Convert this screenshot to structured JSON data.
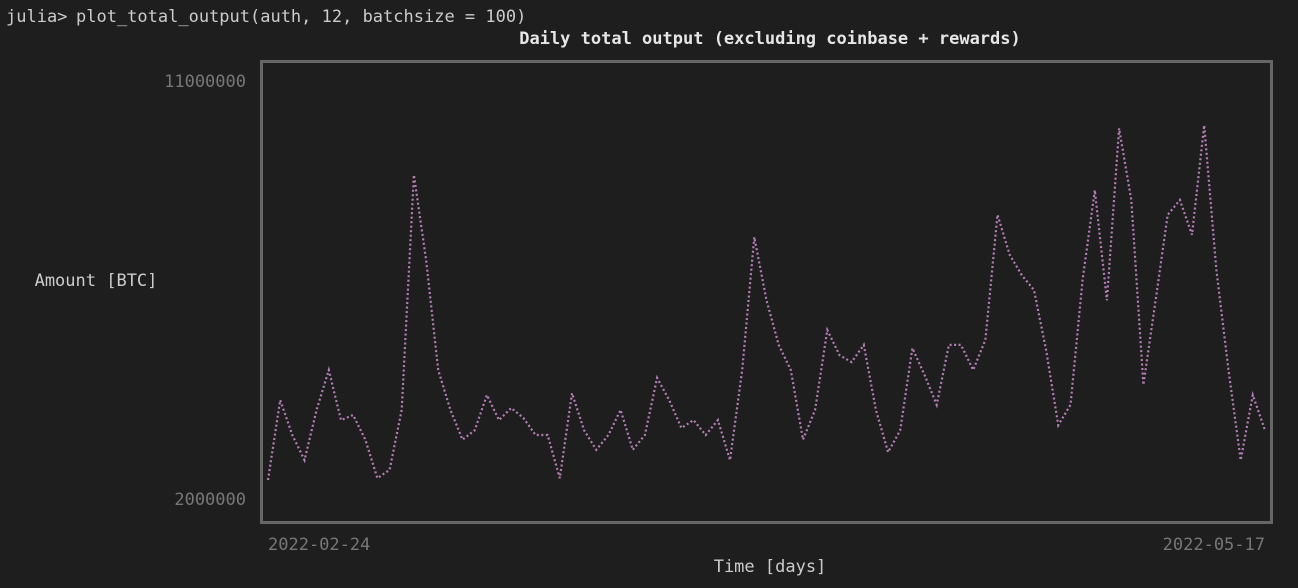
{
  "terminal": {
    "prompt": "julia>",
    "command": "plot_total_output(auth, 12, batchsize = 100)"
  },
  "chart_data": {
    "type": "line",
    "title": "Daily total output (excluding coinbase + rewards)",
    "xlabel": "Time [days]",
    "ylabel": "Amount [BTC]",
    "x": [
      "2022-02-24",
      "2022-02-25",
      "2022-02-26",
      "2022-02-27",
      "2022-02-28",
      "2022-03-01",
      "2022-03-02",
      "2022-03-03",
      "2022-03-04",
      "2022-03-05",
      "2022-03-06",
      "2022-03-07",
      "2022-03-08",
      "2022-03-09",
      "2022-03-10",
      "2022-03-11",
      "2022-03-12",
      "2022-03-13",
      "2022-03-14",
      "2022-03-15",
      "2022-03-16",
      "2022-03-17",
      "2022-03-18",
      "2022-03-19",
      "2022-03-20",
      "2022-03-21",
      "2022-03-22",
      "2022-03-23",
      "2022-03-24",
      "2022-03-25",
      "2022-03-26",
      "2022-03-27",
      "2022-03-28",
      "2022-03-29",
      "2022-03-30",
      "2022-03-31",
      "2022-04-01",
      "2022-04-02",
      "2022-04-03",
      "2022-04-04",
      "2022-04-05",
      "2022-04-06",
      "2022-04-07",
      "2022-04-08",
      "2022-04-09",
      "2022-04-10",
      "2022-04-11",
      "2022-04-12",
      "2022-04-13",
      "2022-04-14",
      "2022-04-15",
      "2022-04-16",
      "2022-04-17",
      "2022-04-18",
      "2022-04-19",
      "2022-04-20",
      "2022-04-21",
      "2022-04-22",
      "2022-04-23",
      "2022-04-24",
      "2022-04-25",
      "2022-04-26",
      "2022-04-27",
      "2022-04-28",
      "2022-04-29",
      "2022-04-30",
      "2022-05-01",
      "2022-05-02",
      "2022-05-03",
      "2022-05-04",
      "2022-05-05",
      "2022-05-06",
      "2022-05-07",
      "2022-05-08",
      "2022-05-09",
      "2022-05-10",
      "2022-05-11",
      "2022-05-12",
      "2022-05-13",
      "2022-05-14",
      "2022-05-15",
      "2022-05-16",
      "2022-05-17"
    ],
    "series": [
      {
        "name": "total output",
        "color": "#b77fb7",
        "values": [
          2430000,
          4150000,
          3400000,
          2860000,
          3940000,
          4800000,
          3720000,
          3830000,
          3300000,
          2470000,
          2650000,
          3940000,
          9000000,
          7170000,
          4800000,
          3940000,
          3300000,
          3500000,
          4260000,
          3720000,
          3980000,
          3770000,
          3400000,
          3400000,
          2470000,
          4300000,
          3500000,
          3080000,
          3400000,
          3940000,
          3080000,
          3400000,
          4630000,
          4150000,
          3550000,
          3720000,
          3400000,
          3720000,
          2860000,
          4800000,
          7660000,
          6300000,
          5340000,
          4800000,
          3300000,
          3940000,
          5660000,
          5120000,
          4970000,
          5340000,
          3940000,
          3030000,
          3500000,
          5270000,
          4690000,
          4050000,
          5340000,
          5340000,
          4800000,
          5450000,
          8140000,
          7280000,
          6840000,
          6520000,
          5230000,
          3610000,
          4050000,
          6740000,
          8670000,
          6300000,
          10000000,
          8460000,
          4480000,
          6300000,
          8140000,
          8460000,
          7710000,
          10070000,
          6950000,
          4800000,
          2860000,
          4260000,
          3500000
        ]
      }
    ],
    "xlim": [
      "2022-02-24",
      "2022-05-17"
    ],
    "xticks": [
      "2022-02-24",
      "2022-05-17"
    ],
    "ylim": [
      2000000,
      11000000
    ],
    "yticks": [
      2000000,
      11000000
    ],
    "grid": false
  }
}
